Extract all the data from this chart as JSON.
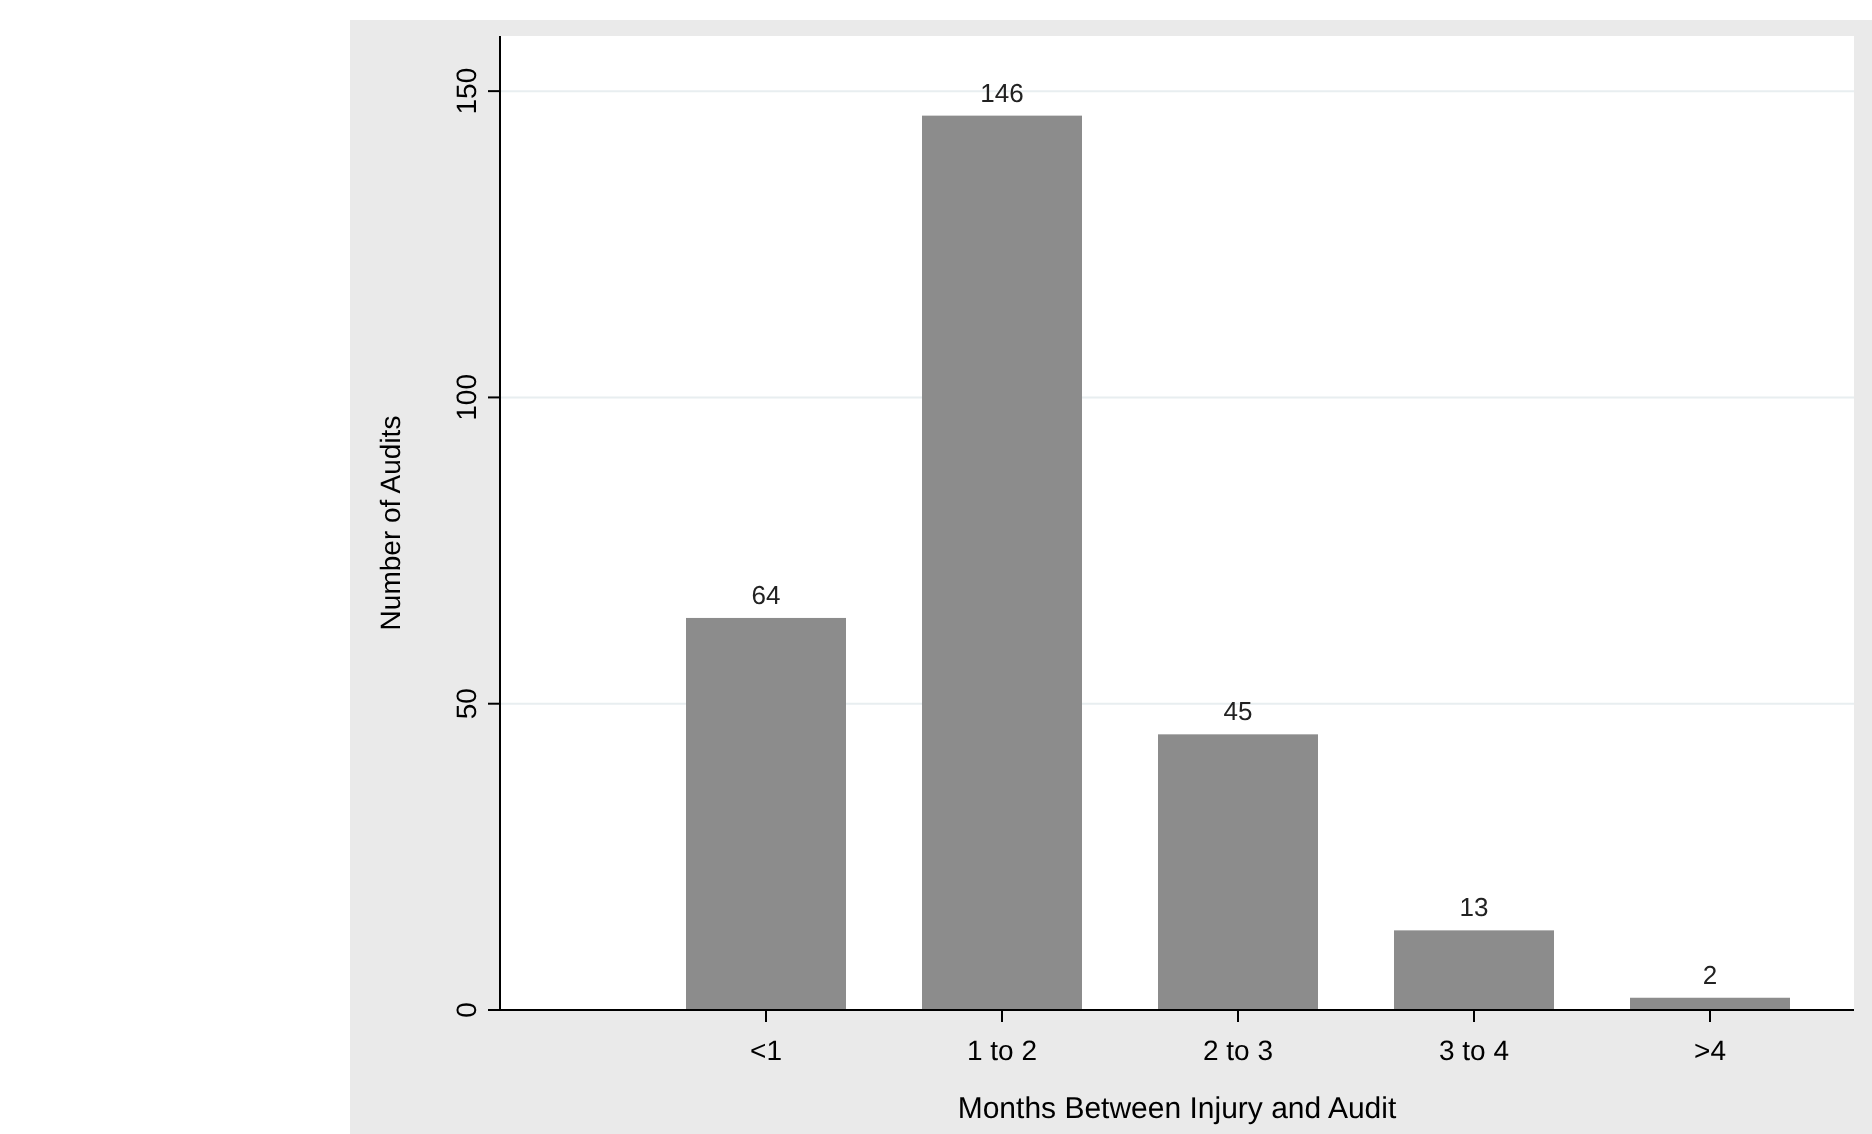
{
  "chart_data": {
    "type": "bar",
    "xlabel": "Months Between Injury and Audit",
    "ylabel": "Number of Audits",
    "categories": [
      "<1",
      "1 to 2",
      "2 to 3",
      "3 to 4",
      ">4"
    ],
    "values": [
      64,
      146,
      45,
      13,
      2
    ],
    "color": "#8c8c8c",
    "ylim": [
      0,
      159
    ],
    "yticks": [
      0,
      50,
      100,
      150
    ],
    "grid": "y",
    "data_labels": true
  }
}
